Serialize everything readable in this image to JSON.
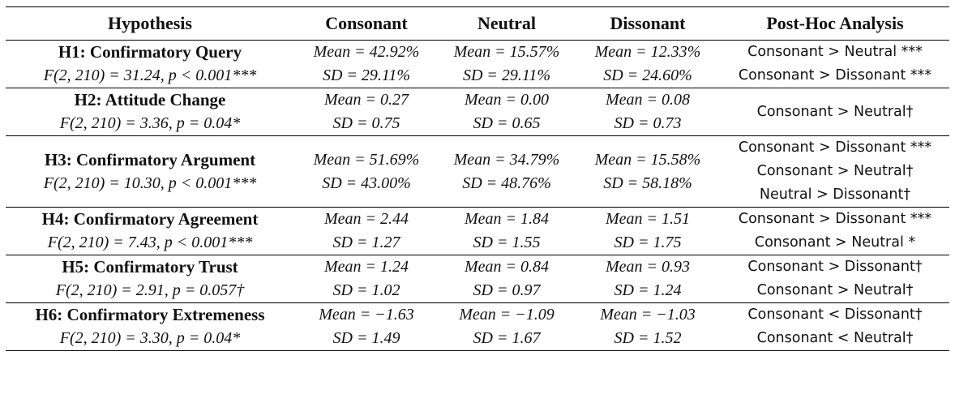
{
  "headers": [
    "Hypothesis",
    "Consonant",
    "Neutral",
    "Dissonant",
    "Post-Hoc Analysis"
  ],
  "rows": [
    {
      "name": "H1: Confirmatory Query",
      "stat": "F(2, 210) = 31.24, p < 0.001***",
      "consonant": {
        "mean": "Mean = 42.92%",
        "sd": "SD = 29.11%"
      },
      "neutral": {
        "mean": "Mean = 15.57%",
        "sd": "SD = 29.11%"
      },
      "dissonant": {
        "mean": "Mean = 12.33%",
        "sd": "SD = 24.60%"
      },
      "posthoc": [
        "Consonant > Neutral ***",
        "Consonant > Dissonant ***"
      ]
    },
    {
      "name": "H2: Attitude Change",
      "stat": "F(2, 210) = 3.36, p = 0.04*",
      "consonant": {
        "mean": "Mean = 0.27",
        "sd": "SD = 0.75"
      },
      "neutral": {
        "mean": "Mean = 0.00",
        "sd": "SD = 0.65"
      },
      "dissonant": {
        "mean": "Mean = 0.08",
        "sd": "SD = 0.73"
      },
      "posthoc": [
        "Consonant > Neutral†"
      ]
    },
    {
      "name": "H3: Confirmatory Argument",
      "stat": "F(2, 210) = 10.30, p < 0.001***",
      "consonant": {
        "mean": "Mean = 51.69%",
        "sd": "SD = 43.00%"
      },
      "neutral": {
        "mean": "Mean = 34.79%",
        "sd": "SD = 48.76%"
      },
      "dissonant": {
        "mean": "Mean = 15.58%",
        "sd": "SD = 58.18%"
      },
      "posthoc": [
        "Consonant > Dissonant ***",
        "Consonant > Neutral†",
        "Neutral > Dissonant†"
      ]
    },
    {
      "name": "H4: Confirmatory Agreement",
      "stat": "F(2, 210) = 7.43, p < 0.001***",
      "consonant": {
        "mean": "Mean = 2.44",
        "sd": "SD = 1.27"
      },
      "neutral": {
        "mean": "Mean = 1.84",
        "sd": "SD = 1.55"
      },
      "dissonant": {
        "mean": "Mean = 1.51",
        "sd": "SD = 1.75"
      },
      "posthoc": [
        "Consonant > Dissonant ***",
        "Consonant > Neutral *"
      ]
    },
    {
      "name": "H5: Confirmatory Trust",
      "stat": "F(2, 210) = 2.91, p = 0.057†",
      "consonant": {
        "mean": "Mean = 1.24",
        "sd": "SD = 1.02"
      },
      "neutral": {
        "mean": "Mean = 0.84",
        "sd": "SD = 0.97"
      },
      "dissonant": {
        "mean": "Mean = 0.93",
        "sd": "SD = 1.24"
      },
      "posthoc": [
        "Consonant > Dissonant†",
        "Consonant > Neutral†"
      ]
    },
    {
      "name": "H6: Confirmatory Extremeness",
      "stat": "F(2, 210) = 3.30, p = 0.04*",
      "consonant": {
        "mean": "Mean = −1.63",
        "sd": "SD = 1.49"
      },
      "neutral": {
        "mean": "Mean = −1.09",
        "sd": "SD = 1.67"
      },
      "dissonant": {
        "mean": "Mean = −1.03",
        "sd": "SD = 1.52"
      },
      "posthoc": [
        "Consonant < Dissonant†",
        "Consonant < Neutral†"
      ]
    }
  ]
}
